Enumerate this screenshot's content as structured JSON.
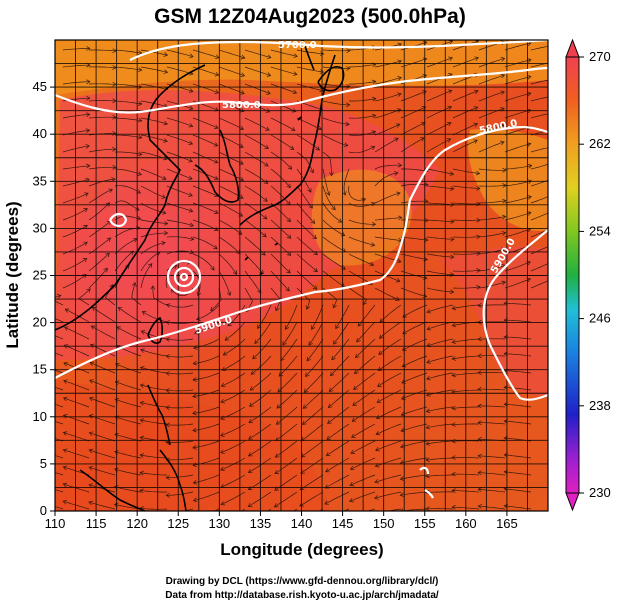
{
  "title": "GSM 12Z04Aug2023 (500.0hPa)",
  "xlabel": "Longitude (degrees)",
  "ylabel": "Latitude  (degrees)",
  "x_ticks": [
    "110",
    "115",
    "120",
    "125",
    "130",
    "135",
    "140",
    "145",
    "150",
    "155",
    "160",
    "165"
  ],
  "y_ticks": [
    "0",
    "5",
    "10",
    "15",
    "20",
    "25",
    "30",
    "35",
    "40",
    "45"
  ],
  "colorbar": {
    "ticks": [
      "230",
      "238",
      "246",
      "254",
      "262",
      "270"
    ]
  },
  "contour_labels": [
    {
      "id": "c5700",
      "text": "5700.0"
    },
    {
      "id": "c5800a",
      "text": "5800.0"
    },
    {
      "id": "c5800b",
      "text": "5800.0"
    },
    {
      "id": "c5900",
      "text": "5900.0"
    },
    {
      "id": "c5900b",
      "text": "5900.0"
    }
  ],
  "credits": {
    "line1": "Drawing by DCL (https://www.gfd-dennou.org/library/dcl/)",
    "line2": "Data from http://database.rish.kyoto-u.ac.jp/arch/jmadata/"
  },
  "colors": {
    "field_warm": "#e84a1e",
    "field_hot": "#f0404a",
    "contour": "#ffffff",
    "coast": "#000000"
  }
}
